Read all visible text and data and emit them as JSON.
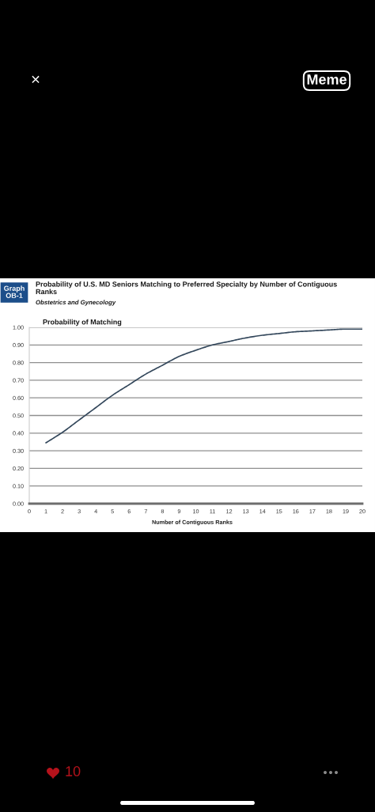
{
  "chart_data": {
    "type": "line",
    "title": "Probability of U.S. MD Seniors Matching to Preferred Specialty by Number of Contiguous\nRanks",
    "subtitle": "Obstetrics and Gynecology",
    "ylabel": "Probability of Matching",
    "xlabel": "Number of Contiguous Ranks",
    "x": [
      1,
      2,
      3,
      4,
      5,
      6,
      7,
      8,
      9,
      10,
      11,
      12,
      13,
      14,
      15,
      16,
      17,
      18,
      19,
      20
    ],
    "values": [
      0.345,
      0.405,
      0.475,
      0.545,
      0.615,
      0.675,
      0.735,
      0.785,
      0.835,
      0.87,
      0.9,
      0.92,
      0.94,
      0.955,
      0.965,
      0.975,
      0.98,
      0.985,
      0.99,
      0.99
    ],
    "color": "#33475b",
    "line_style": "solid",
    "xlim": [
      0,
      20
    ],
    "xticks": [
      0,
      1,
      2,
      3,
      4,
      5,
      6,
      7,
      8,
      9,
      10,
      11,
      12,
      13,
      14,
      15,
      16,
      17,
      18,
      19,
      20
    ],
    "ylim": [
      0,
      1
    ],
    "yticks": [
      {
        "value": 0,
        "label": "0.00"
      },
      {
        "value": 0.1,
        "label": "0.10"
      },
      {
        "value": 0.2,
        "label": "0.20"
      },
      {
        "value": 0.3,
        "label": "0.30"
      },
      {
        "value": 0.4,
        "label": "0.40"
      },
      {
        "value": 0.5,
        "label": "0.50"
      },
      {
        "value": 0.6,
        "label": "0.60"
      },
      {
        "value": 0.7,
        "label": "0.70"
      },
      {
        "value": 0.8,
        "label": "0.80"
      },
      {
        "value": 0.9,
        "label": "0.90"
      },
      {
        "value": 1,
        "label": "1.00"
      }
    ],
    "grid": "y",
    "annotations": [
      "Graph\nOB-1",
      "×",
      "Meme",
      "10"
    ]
  }
}
